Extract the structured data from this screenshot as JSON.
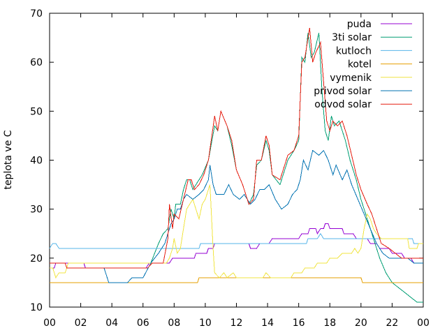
{
  "chart_data": {
    "type": "line",
    "title": "",
    "xlabel": "",
    "ylabel": "teplota ve C",
    "x_ticks": [
      "00",
      "02",
      "04",
      "06",
      "08",
      "10",
      "12",
      "14",
      "16",
      "18",
      "20",
      "22",
      "00"
    ],
    "xlim": [
      0,
      24
    ],
    "ylim": [
      10,
      70
    ],
    "y_ticks": [
      10,
      20,
      30,
      40,
      50,
      60,
      70
    ],
    "grid": false,
    "legend_position": "top-right",
    "series": [
      {
        "name": "puda",
        "color": "#9400d3",
        "points": [
          [
            0,
            18
          ],
          [
            0.3,
            18
          ],
          [
            0.4,
            19
          ],
          [
            2.2,
            19
          ],
          [
            2.3,
            18
          ],
          [
            6.2,
            18
          ],
          [
            6.4,
            19
          ],
          [
            7.7,
            19
          ],
          [
            7.9,
            20
          ],
          [
            9.3,
            20
          ],
          [
            9.4,
            21
          ],
          [
            10.1,
            21
          ],
          [
            10.2,
            22
          ],
          [
            10.5,
            22
          ],
          [
            10.6,
            23
          ],
          [
            12.8,
            23
          ],
          [
            12.9,
            22
          ],
          [
            13.3,
            22
          ],
          [
            13.5,
            23
          ],
          [
            14.1,
            23
          ],
          [
            14.3,
            24
          ],
          [
            16.0,
            24
          ],
          [
            16.2,
            25
          ],
          [
            16.6,
            25
          ],
          [
            16.7,
            26
          ],
          [
            17.1,
            26
          ],
          [
            17.2,
            25
          ],
          [
            17.4,
            26
          ],
          [
            17.6,
            26
          ],
          [
            17.7,
            27
          ],
          [
            17.9,
            27
          ],
          [
            18.0,
            26
          ],
          [
            18.8,
            26
          ],
          [
            18.9,
            25
          ],
          [
            19.5,
            25
          ],
          [
            19.7,
            24
          ],
          [
            20.4,
            24
          ],
          [
            20.6,
            23
          ],
          [
            21.0,
            23
          ],
          [
            21.2,
            22
          ],
          [
            21.8,
            22
          ],
          [
            22.0,
            21
          ],
          [
            22.6,
            21
          ],
          [
            22.8,
            20
          ],
          [
            23.2,
            20
          ],
          [
            23.4,
            19
          ],
          [
            24.0,
            19
          ]
        ]
      },
      {
        "name": "3ti solar",
        "color": "#009e73",
        "points": [
          [
            0,
            19
          ],
          [
            1.0,
            19
          ],
          [
            1.1,
            18
          ],
          [
            3.5,
            18
          ],
          [
            3.8,
            15
          ],
          [
            5.0,
            15
          ],
          [
            5.3,
            16
          ],
          [
            6.0,
            16
          ],
          [
            6.5,
            19
          ],
          [
            7.0,
            23
          ],
          [
            7.3,
            25
          ],
          [
            7.6,
            26
          ],
          [
            7.8,
            30
          ],
          [
            8.0,
            28
          ],
          [
            8.1,
            31
          ],
          [
            8.4,
            31
          ],
          [
            8.6,
            34
          ],
          [
            8.8,
            36
          ],
          [
            9.0,
            36
          ],
          [
            9.2,
            34
          ],
          [
            9.4,
            35
          ],
          [
            9.8,
            37
          ],
          [
            10.2,
            40
          ],
          [
            10.6,
            47
          ],
          [
            10.8,
            46
          ],
          [
            11.0,
            50
          ],
          [
            11.4,
            47
          ],
          [
            11.7,
            43
          ],
          [
            12.0,
            38
          ],
          [
            12.4,
            35
          ],
          [
            12.8,
            31
          ],
          [
            13.1,
            33
          ],
          [
            13.3,
            39
          ],
          [
            13.6,
            40
          ],
          [
            13.9,
            44
          ],
          [
            14.1,
            42
          ],
          [
            14.3,
            37
          ],
          [
            14.8,
            35
          ],
          [
            15.3,
            40
          ],
          [
            15.7,
            42
          ],
          [
            16.0,
            44
          ],
          [
            16.2,
            61
          ],
          [
            16.4,
            60
          ],
          [
            16.6,
            66
          ],
          [
            16.8,
            61
          ],
          [
            17.0,
            62
          ],
          [
            17.3,
            66
          ],
          [
            17.5,
            54
          ],
          [
            17.7,
            46
          ],
          [
            17.9,
            44
          ],
          [
            18.1,
            49
          ],
          [
            18.3,
            47
          ],
          [
            18.6,
            48
          ],
          [
            19.0,
            44
          ],
          [
            19.3,
            40
          ],
          [
            19.7,
            36
          ],
          [
            20.0,
            32
          ],
          [
            20.4,
            28
          ],
          [
            20.8,
            24
          ],
          [
            21.2,
            20
          ],
          [
            21.6,
            17
          ],
          [
            22.0,
            15
          ],
          [
            22.4,
            14
          ],
          [
            22.8,
            13
          ],
          [
            23.2,
            12
          ],
          [
            23.6,
            11
          ],
          [
            24.0,
            11
          ]
        ]
      },
      {
        "name": "kutloch",
        "color": "#56b4e9",
        "points": [
          [
            0,
            22
          ],
          [
            0.2,
            23
          ],
          [
            0.4,
            23
          ],
          [
            0.6,
            22
          ],
          [
            9.6,
            22
          ],
          [
            9.7,
            23
          ],
          [
            16.5,
            23
          ],
          [
            16.6,
            24
          ],
          [
            17.2,
            24
          ],
          [
            17.4,
            25
          ],
          [
            17.6,
            24
          ],
          [
            23.3,
            24
          ],
          [
            23.4,
            23
          ],
          [
            24.0,
            23
          ]
        ]
      },
      {
        "name": "kotel",
        "color": "#e69f00",
        "points": [
          [
            0,
            15
          ],
          [
            9.5,
            15
          ],
          [
            9.6,
            16
          ],
          [
            20.0,
            16
          ],
          [
            20.1,
            15
          ],
          [
            24.0,
            15
          ]
        ]
      },
      {
        "name": "vymenik",
        "color": "#f0e442",
        "points": [
          [
            0,
            18
          ],
          [
            0.2,
            18
          ],
          [
            0.4,
            16
          ],
          [
            0.6,
            17
          ],
          [
            1.0,
            17
          ],
          [
            1.2,
            19
          ],
          [
            7.5,
            19
          ],
          [
            7.7,
            20
          ],
          [
            7.9,
            22
          ],
          [
            8.0,
            24
          ],
          [
            8.2,
            21
          ],
          [
            8.4,
            22
          ],
          [
            8.6,
            26
          ],
          [
            8.8,
            30
          ],
          [
            9.0,
            31
          ],
          [
            9.2,
            32
          ],
          [
            9.4,
            30
          ],
          [
            9.6,
            28
          ],
          [
            9.8,
            31
          ],
          [
            10.0,
            32
          ],
          [
            10.3,
            35
          ],
          [
            10.5,
            22
          ],
          [
            10.6,
            17
          ],
          [
            10.9,
            16
          ],
          [
            11.2,
            17
          ],
          [
            11.4,
            16
          ],
          [
            11.8,
            17
          ],
          [
            12.0,
            16
          ],
          [
            13.7,
            16
          ],
          [
            13.9,
            17
          ],
          [
            14.2,
            16
          ],
          [
            15.5,
            16
          ],
          [
            15.7,
            17
          ],
          [
            16.2,
            17
          ],
          [
            16.4,
            18
          ],
          [
            17.0,
            18
          ],
          [
            17.2,
            19
          ],
          [
            17.8,
            19
          ],
          [
            18.0,
            20
          ],
          [
            18.5,
            20
          ],
          [
            18.8,
            21
          ],
          [
            19.4,
            21
          ],
          [
            19.6,
            22
          ],
          [
            19.8,
            21
          ],
          [
            20.0,
            22
          ],
          [
            20.2,
            26
          ],
          [
            20.4,
            29
          ],
          [
            20.6,
            28
          ],
          [
            20.8,
            26
          ],
          [
            21.0,
            25
          ],
          [
            21.3,
            24
          ],
          [
            23.0,
            24
          ],
          [
            23.1,
            22
          ],
          [
            23.6,
            22
          ],
          [
            23.7,
            23
          ],
          [
            24.0,
            23
          ]
        ]
      },
      {
        "name": "privod solar",
        "color": "#0072b2",
        "points": [
          [
            0,
            19
          ],
          [
            1.0,
            19
          ],
          [
            1.1,
            18
          ],
          [
            3.5,
            18
          ],
          [
            3.8,
            15
          ],
          [
            5.0,
            15
          ],
          [
            5.3,
            16
          ],
          [
            6.0,
            16
          ],
          [
            6.5,
            19
          ],
          [
            7.0,
            21
          ],
          [
            7.4,
            23
          ],
          [
            7.7,
            26
          ],
          [
            7.8,
            27
          ],
          [
            8.0,
            28
          ],
          [
            8.2,
            30
          ],
          [
            8.4,
            30
          ],
          [
            8.6,
            32
          ],
          [
            8.8,
            33
          ],
          [
            9.2,
            32
          ],
          [
            9.6,
            33
          ],
          [
            9.9,
            34
          ],
          [
            10.2,
            36
          ],
          [
            10.3,
            39
          ],
          [
            10.5,
            35
          ],
          [
            10.7,
            33
          ],
          [
            11.2,
            33
          ],
          [
            11.5,
            35
          ],
          [
            11.8,
            33
          ],
          [
            12.2,
            32
          ],
          [
            12.5,
            33
          ],
          [
            12.9,
            31
          ],
          [
            13.2,
            32
          ],
          [
            13.5,
            34
          ],
          [
            13.8,
            34
          ],
          [
            14.1,
            35
          ],
          [
            14.5,
            32
          ],
          [
            14.9,
            30
          ],
          [
            15.3,
            31
          ],
          [
            15.6,
            33
          ],
          [
            15.9,
            34
          ],
          [
            16.1,
            36
          ],
          [
            16.3,
            40
          ],
          [
            16.6,
            38
          ],
          [
            16.9,
            42
          ],
          [
            17.3,
            41
          ],
          [
            17.6,
            42
          ],
          [
            17.9,
            40
          ],
          [
            18.2,
            37
          ],
          [
            18.4,
            39
          ],
          [
            18.8,
            36
          ],
          [
            19.1,
            38
          ],
          [
            19.4,
            35
          ],
          [
            19.8,
            32
          ],
          [
            20.2,
            29
          ],
          [
            20.6,
            26
          ],
          [
            21.0,
            23
          ],
          [
            21.4,
            21
          ],
          [
            21.8,
            20
          ],
          [
            22.2,
            20
          ],
          [
            22.6,
            20
          ],
          [
            23.0,
            20
          ],
          [
            23.4,
            19
          ],
          [
            24.0,
            19
          ]
        ]
      },
      {
        "name": "odvod solar",
        "color": "#e51e10",
        "points": [
          [
            0,
            19
          ],
          [
            1.0,
            19
          ],
          [
            1.1,
            18
          ],
          [
            3.5,
            18
          ],
          [
            3.8,
            18
          ],
          [
            6.3,
            18
          ],
          [
            6.6,
            19
          ],
          [
            7.3,
            19
          ],
          [
            7.6,
            24
          ],
          [
            7.7,
            31
          ],
          [
            7.9,
            26
          ],
          [
            8.0,
            29
          ],
          [
            8.3,
            28
          ],
          [
            8.6,
            32
          ],
          [
            8.9,
            36
          ],
          [
            9.1,
            36
          ],
          [
            9.3,
            34
          ],
          [
            9.6,
            35
          ],
          [
            9.9,
            37
          ],
          [
            10.2,
            40
          ],
          [
            10.6,
            49
          ],
          [
            10.8,
            46
          ],
          [
            11.0,
            50
          ],
          [
            11.4,
            47
          ],
          [
            11.7,
            44
          ],
          [
            12.0,
            38
          ],
          [
            12.4,
            35
          ],
          [
            12.8,
            31
          ],
          [
            13.1,
            32
          ],
          [
            13.3,
            40
          ],
          [
            13.6,
            40
          ],
          [
            13.9,
            45
          ],
          [
            14.1,
            43
          ],
          [
            14.3,
            37
          ],
          [
            14.8,
            36
          ],
          [
            15.3,
            41
          ],
          [
            15.7,
            42
          ],
          [
            16.0,
            45
          ],
          [
            16.2,
            60
          ],
          [
            16.4,
            61
          ],
          [
            16.7,
            67
          ],
          [
            16.9,
            60
          ],
          [
            17.1,
            62
          ],
          [
            17.4,
            64
          ],
          [
            17.6,
            56
          ],
          [
            17.8,
            48
          ],
          [
            18.0,
            46
          ],
          [
            18.2,
            48
          ],
          [
            18.5,
            47
          ],
          [
            18.8,
            48
          ],
          [
            19.1,
            45
          ],
          [
            19.4,
            41
          ],
          [
            19.7,
            37
          ],
          [
            20.0,
            34
          ],
          [
            20.4,
            31
          ],
          [
            20.7,
            29
          ],
          [
            21.0,
            26
          ],
          [
            21.3,
            23
          ],
          [
            21.8,
            22
          ],
          [
            22.2,
            21
          ],
          [
            22.6,
            20
          ],
          [
            23.0,
            20
          ],
          [
            23.5,
            20
          ],
          [
            24.0,
            20
          ]
        ]
      }
    ]
  }
}
